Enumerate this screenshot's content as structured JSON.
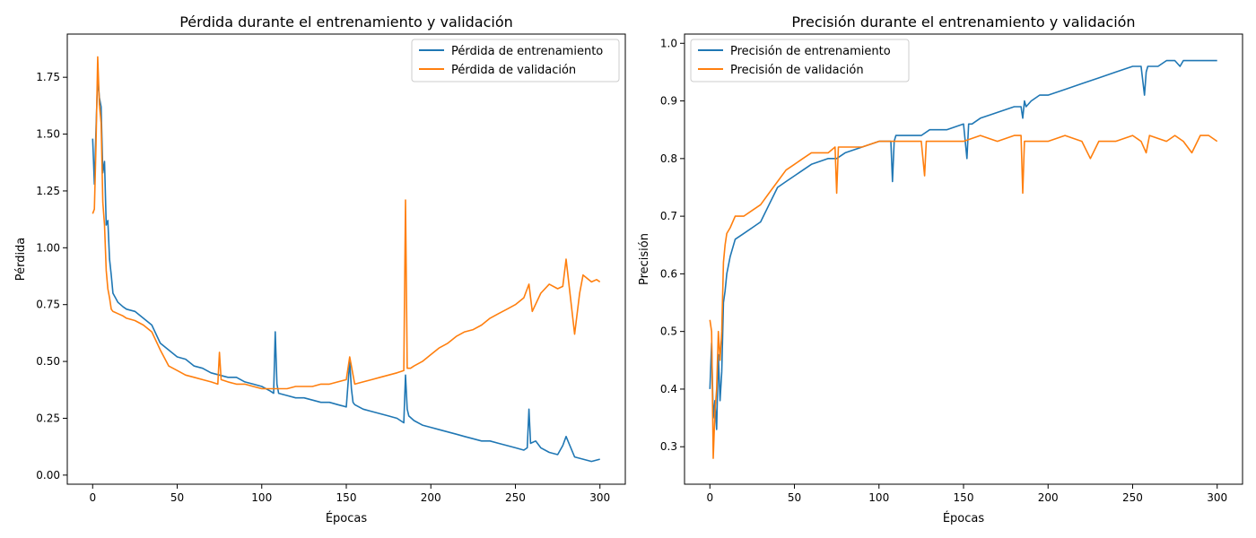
{
  "chart_data": [
    {
      "type": "line",
      "title": "Pérdida durante el entrenamiento y validación",
      "xlabel": "Épocas",
      "ylabel": "Pérdida",
      "xlim": [
        -15,
        315
      ],
      "ylim": [
        -0.04,
        1.94
      ],
      "xticks": [
        0,
        50,
        100,
        150,
        200,
        250,
        300
      ],
      "yticks": [
        0.0,
        0.25,
        0.5,
        0.75,
        1.0,
        1.25,
        1.5,
        1.75
      ],
      "ytick_labels": [
        "0.00",
        "0.25",
        "0.50",
        "0.75",
        "1.00",
        "1.25",
        "1.50",
        "1.75"
      ],
      "legend_position": "top-right",
      "grid": false,
      "series": [
        {
          "name": "Pérdida de entrenamiento",
          "color": "#1f77b4",
          "x": [
            0,
            1,
            2,
            3,
            4,
            5,
            6,
            7,
            8,
            9,
            10,
            11,
            12,
            15,
            18,
            20,
            25,
            30,
            35,
            40,
            45,
            50,
            55,
            60,
            65,
            70,
            75,
            80,
            85,
            90,
            95,
            100,
            105,
            107,
            108,
            109,
            110,
            115,
            120,
            125,
            130,
            135,
            140,
            145,
            150,
            152,
            153,
            154,
            155,
            160,
            165,
            170,
            175,
            180,
            184,
            185,
            186,
            187,
            190,
            195,
            200,
            205,
            210,
            215,
            220,
            225,
            230,
            235,
            240,
            245,
            250,
            255,
            257,
            258,
            259,
            262,
            265,
            270,
            275,
            278,
            280,
            285,
            290,
            295,
            300
          ],
          "values": [
            1.48,
            1.28,
            1.52,
            1.75,
            1.66,
            1.62,
            1.33,
            1.38,
            1.1,
            1.12,
            0.95,
            0.88,
            0.8,
            0.76,
            0.74,
            0.73,
            0.72,
            0.69,
            0.66,
            0.58,
            0.55,
            0.52,
            0.51,
            0.48,
            0.47,
            0.45,
            0.44,
            0.43,
            0.43,
            0.41,
            0.4,
            0.39,
            0.37,
            0.36,
            0.63,
            0.4,
            0.36,
            0.35,
            0.34,
            0.34,
            0.33,
            0.32,
            0.32,
            0.31,
            0.3,
            0.5,
            0.38,
            0.32,
            0.31,
            0.29,
            0.28,
            0.27,
            0.26,
            0.25,
            0.23,
            0.44,
            0.29,
            0.26,
            0.24,
            0.22,
            0.21,
            0.2,
            0.19,
            0.18,
            0.17,
            0.16,
            0.15,
            0.15,
            0.14,
            0.13,
            0.12,
            0.11,
            0.12,
            0.29,
            0.14,
            0.15,
            0.12,
            0.1,
            0.09,
            0.13,
            0.17,
            0.08,
            0.07,
            0.06,
            0.07
          ]
        },
        {
          "name": "Pérdida de validación",
          "color": "#ff7f0e",
          "x": [
            0,
            1,
            2,
            3,
            4,
            5,
            6,
            7,
            8,
            9,
            10,
            11,
            12,
            15,
            18,
            20,
            25,
            30,
            35,
            40,
            45,
            50,
            55,
            60,
            65,
            70,
            74,
            75,
            76,
            80,
            85,
            90,
            95,
            100,
            105,
            110,
            115,
            120,
            125,
            130,
            135,
            140,
            145,
            150,
            152,
            155,
            160,
            165,
            170,
            175,
            180,
            184,
            185,
            186,
            188,
            190,
            195,
            200,
            205,
            210,
            215,
            220,
            225,
            230,
            235,
            240,
            245,
            250,
            255,
            258,
            260,
            265,
            270,
            275,
            278,
            280,
            285,
            288,
            290,
            295,
            298,
            300
          ],
          "values": [
            1.15,
            1.17,
            1.45,
            1.84,
            1.63,
            1.55,
            1.2,
            1.1,
            0.9,
            0.82,
            0.78,
            0.73,
            0.72,
            0.71,
            0.7,
            0.69,
            0.68,
            0.66,
            0.63,
            0.55,
            0.48,
            0.46,
            0.44,
            0.43,
            0.42,
            0.41,
            0.4,
            0.54,
            0.42,
            0.41,
            0.4,
            0.4,
            0.39,
            0.38,
            0.38,
            0.38,
            0.38,
            0.39,
            0.39,
            0.39,
            0.4,
            0.4,
            0.41,
            0.42,
            0.52,
            0.4,
            0.41,
            0.42,
            0.43,
            0.44,
            0.45,
            0.46,
            1.21,
            0.47,
            0.47,
            0.48,
            0.5,
            0.53,
            0.56,
            0.58,
            0.61,
            0.63,
            0.64,
            0.66,
            0.69,
            0.71,
            0.73,
            0.75,
            0.78,
            0.84,
            0.72,
            0.8,
            0.84,
            0.82,
            0.83,
            0.95,
            0.62,
            0.8,
            0.88,
            0.85,
            0.86,
            0.85
          ]
        }
      ]
    },
    {
      "type": "line",
      "title": "Precisión durante el entrenamiento y validación",
      "xlabel": "Épocas",
      "ylabel": "Precisión",
      "xlim": [
        -15,
        315
      ],
      "ylim": [
        0.235,
        1.016
      ],
      "xticks": [
        0,
        50,
        100,
        150,
        200,
        250,
        300
      ],
      "yticks": [
        0.3,
        0.4,
        0.5,
        0.6,
        0.7,
        0.8,
        0.9,
        1.0
      ],
      "ytick_labels": [
        "0.3",
        "0.4",
        "0.5",
        "0.6",
        "0.7",
        "0.8",
        "0.9",
        "1.0"
      ],
      "legend_position": "top-left",
      "grid": false,
      "series": [
        {
          "name": "Precisión de entrenamiento",
          "color": "#1f77b4",
          "x": [
            0,
            1,
            2,
            3,
            4,
            5,
            6,
            7,
            8,
            9,
            10,
            12,
            15,
            20,
            25,
            30,
            35,
            40,
            45,
            50,
            60,
            70,
            75,
            80,
            90,
            100,
            105,
            107,
            108,
            109,
            110,
            120,
            125,
            130,
            140,
            150,
            152,
            153,
            154,
            155,
            160,
            170,
            180,
            184,
            185,
            186,
            187,
            190,
            195,
            200,
            210,
            220,
            230,
            240,
            250,
            255,
            257,
            258,
            259,
            262,
            265,
            270,
            275,
            278,
            280,
            285,
            290,
            295,
            300
          ],
          "values": [
            0.4,
            0.48,
            0.35,
            0.38,
            0.33,
            0.46,
            0.38,
            0.43,
            0.55,
            0.57,
            0.6,
            0.63,
            0.66,
            0.67,
            0.68,
            0.69,
            0.72,
            0.75,
            0.76,
            0.77,
            0.79,
            0.8,
            0.8,
            0.81,
            0.82,
            0.83,
            0.83,
            0.83,
            0.76,
            0.83,
            0.84,
            0.84,
            0.84,
            0.85,
            0.85,
            0.86,
            0.8,
            0.86,
            0.86,
            0.86,
            0.87,
            0.88,
            0.89,
            0.89,
            0.87,
            0.9,
            0.89,
            0.9,
            0.91,
            0.91,
            0.92,
            0.93,
            0.94,
            0.95,
            0.96,
            0.96,
            0.91,
            0.95,
            0.96,
            0.96,
            0.96,
            0.97,
            0.97,
            0.96,
            0.97,
            0.97,
            0.97,
            0.97,
            0.97
          ]
        },
        {
          "name": "Precisión de validación",
          "color": "#ff7f0e",
          "x": [
            0,
            1,
            2,
            3,
            4,
            5,
            6,
            7,
            8,
            9,
            10,
            12,
            15,
            20,
            25,
            30,
            35,
            40,
            45,
            50,
            55,
            60,
            65,
            70,
            74,
            75,
            76,
            80,
            90,
            100,
            110,
            120,
            125,
            127,
            128,
            130,
            140,
            150,
            160,
            170,
            180,
            184,
            185,
            186,
            190,
            200,
            210,
            220,
            225,
            230,
            240,
            250,
            255,
            258,
            260,
            270,
            275,
            280,
            285,
            290,
            295,
            300
          ],
          "values": [
            0.52,
            0.5,
            0.28,
            0.36,
            0.4,
            0.5,
            0.45,
            0.5,
            0.62,
            0.65,
            0.67,
            0.68,
            0.7,
            0.7,
            0.71,
            0.72,
            0.74,
            0.76,
            0.78,
            0.79,
            0.8,
            0.81,
            0.81,
            0.81,
            0.82,
            0.74,
            0.82,
            0.82,
            0.82,
            0.83,
            0.83,
            0.83,
            0.83,
            0.77,
            0.83,
            0.83,
            0.83,
            0.83,
            0.84,
            0.83,
            0.84,
            0.84,
            0.74,
            0.83,
            0.83,
            0.83,
            0.84,
            0.83,
            0.8,
            0.83,
            0.83,
            0.84,
            0.83,
            0.81,
            0.84,
            0.83,
            0.84,
            0.83,
            0.81,
            0.84,
            0.84,
            0.83
          ]
        }
      ]
    }
  ]
}
